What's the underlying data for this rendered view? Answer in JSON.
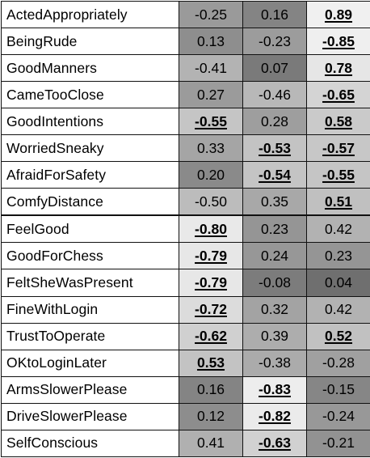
{
  "table": {
    "rows": [
      {
        "label": "ActedAppropriately",
        "cells": [
          {
            "value": "-0.25",
            "shade": "#9a9a9a",
            "significant": false
          },
          {
            "value": "0.16",
            "shade": "#848484",
            "significant": false
          },
          {
            "value": "0.89",
            "shade": "#f0f0f0",
            "significant": true
          }
        ]
      },
      {
        "label": "BeingRude",
        "cells": [
          {
            "value": "0.13",
            "shade": "#8e8e8e",
            "significant": false
          },
          {
            "value": "-0.23",
            "shade": "#9c9c9c",
            "significant": false
          },
          {
            "value": "-0.85",
            "shade": "#efefef",
            "significant": true
          }
        ]
      },
      {
        "label": "GoodManners",
        "cells": [
          {
            "value": "-0.41",
            "shade": "#b3b3b3",
            "significant": false
          },
          {
            "value": "0.07",
            "shade": "#7a7a7a",
            "significant": false
          },
          {
            "value": "0.78",
            "shade": "#e6e6e6",
            "significant": true
          }
        ]
      },
      {
        "label": "CameTooClose",
        "cells": [
          {
            "value": "0.27",
            "shade": "#9b9b9b",
            "significant": false
          },
          {
            "value": "-0.46",
            "shade": "#b8b8b8",
            "significant": false
          },
          {
            "value": "-0.65",
            "shade": "#d4d4d4",
            "significant": true
          }
        ]
      },
      {
        "label": "GoodIntentions",
        "cells": [
          {
            "value": "-0.55",
            "shade": "#c5c5c5",
            "significant": true
          },
          {
            "value": "0.28",
            "shade": "#9e9e9e",
            "significant": false
          },
          {
            "value": "0.58",
            "shade": "#cacaca",
            "significant": true
          }
        ]
      },
      {
        "label": "WorriedSneaky",
        "cells": [
          {
            "value": "0.33",
            "shade": "#a5a5a5",
            "significant": false
          },
          {
            "value": "-0.53",
            "shade": "#c3c3c3",
            "significant": true
          },
          {
            "value": "-0.57",
            "shade": "#c7c7c7",
            "significant": true
          }
        ]
      },
      {
        "label": "AfraidForSafety",
        "cells": [
          {
            "value": "0.20",
            "shade": "#8a8a8a",
            "significant": false
          },
          {
            "value": "-0.54",
            "shade": "#c4c4c4",
            "significant": true
          },
          {
            "value": "-0.55",
            "shade": "#c5c5c5",
            "significant": true
          }
        ]
      },
      {
        "label": "ComfyDistance",
        "cells": [
          {
            "value": "-0.50",
            "shade": "#bcbcbc",
            "significant": false
          },
          {
            "value": "0.35",
            "shade": "#a8a8a8",
            "significant": false
          },
          {
            "value": "0.51",
            "shade": "#c0c0c0",
            "significant": true
          }
        ]
      },
      {
        "label": "FeelGood",
        "cells": [
          {
            "value": "-0.80",
            "shade": "#e9e9e9",
            "significant": true
          },
          {
            "value": "0.23",
            "shade": "#959595",
            "significant": false
          },
          {
            "value": "0.42",
            "shade": "#b2b2b2",
            "significant": false
          }
        ]
      },
      {
        "label": "GoodForChess",
        "cells": [
          {
            "value": "-0.79",
            "shade": "#e7e7e7",
            "significant": true
          },
          {
            "value": "0.24",
            "shade": "#979797",
            "significant": false
          },
          {
            "value": "0.23",
            "shade": "#959595",
            "significant": false
          }
        ]
      },
      {
        "label": "FeltSheWasPresent",
        "cells": [
          {
            "value": "-0.79",
            "shade": "#e7e7e7",
            "significant": true
          },
          {
            "value": "-0.08",
            "shade": "#7c7c7c",
            "significant": false
          },
          {
            "value": "0.04",
            "shade": "#6f6f6f",
            "significant": false
          }
        ]
      },
      {
        "label": "FineWithLogin",
        "cells": [
          {
            "value": "-0.72",
            "shade": "#dcdcdc",
            "significant": true
          },
          {
            "value": "0.32",
            "shade": "#a3a3a3",
            "significant": false
          },
          {
            "value": "0.42",
            "shade": "#b2b2b2",
            "significant": false
          }
        ]
      },
      {
        "label": "TrustToOperate",
        "cells": [
          {
            "value": "-0.62",
            "shade": "#d0d0d0",
            "significant": true
          },
          {
            "value": "0.39",
            "shade": "#adadad",
            "significant": false
          },
          {
            "value": "0.52",
            "shade": "#c1c1c1",
            "significant": true
          }
        ]
      },
      {
        "label": "OKtoLoginLater",
        "cells": [
          {
            "value": "0.53",
            "shade": "#c3c3c3",
            "significant": true
          },
          {
            "value": "-0.38",
            "shade": "#ababab",
            "significant": false
          },
          {
            "value": "-0.28",
            "shade": "#a0a0a0",
            "significant": false
          }
        ]
      },
      {
        "label": "ArmsSlowerPlease",
        "cells": [
          {
            "value": "0.16",
            "shade": "#848484",
            "significant": false
          },
          {
            "value": "-0.83",
            "shade": "#ededed",
            "significant": true
          },
          {
            "value": "-0.15",
            "shade": "#868686",
            "significant": false
          }
        ]
      },
      {
        "label": "DriveSlowerPlease",
        "cells": [
          {
            "value": "0.12",
            "shade": "#8d8d8d",
            "significant": false
          },
          {
            "value": "-0.82",
            "shade": "#ebebeb",
            "significant": true
          },
          {
            "value": "-0.24",
            "shade": "#989898",
            "significant": false
          }
        ]
      },
      {
        "label": "SelfConscious",
        "cells": [
          {
            "value": "0.41",
            "shade": "#b0b0b0",
            "significant": false
          },
          {
            "value": "-0.63",
            "shade": "#d1d1d1",
            "significant": true
          },
          {
            "value": "-0.21",
            "shade": "#929292",
            "significant": false
          }
        ]
      }
    ]
  }
}
